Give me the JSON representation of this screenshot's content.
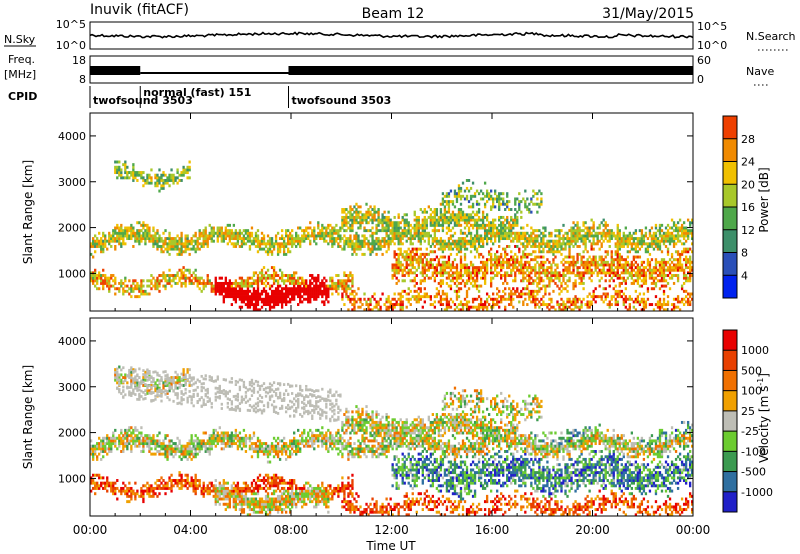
{
  "header": {
    "station": "Inuvik (fitACF)",
    "beam": "Beam 12",
    "date": "31/May/2015"
  },
  "strips": {
    "nsky": {
      "label": "N.Sky",
      "ticks": [
        "10^5",
        "10^0"
      ]
    },
    "nsearch": {
      "label": "N.Search",
      "ticks": [
        "10^5",
        "10^0"
      ]
    },
    "freq": {
      "label_top": "Freq.",
      "label_unit": "[MHz]",
      "ticks": [
        "18",
        "8"
      ]
    },
    "nave": {
      "label": "Nave",
      "ticks": [
        "60",
        "0"
      ]
    },
    "cpid": {
      "label": "CPID",
      "segments": [
        {
          "name": "twofsound 3503",
          "start_hour": 0.0,
          "end_hour": 2.0
        },
        {
          "name": "normal (fast) 151",
          "start_hour": 2.0,
          "end_hour": 7.9
        },
        {
          "name": "twofsound 3503",
          "start_hour": 7.9,
          "end_hour": 24.0
        }
      ]
    }
  },
  "panels": {
    "power": {
      "ylabel": "Slant Range [km]",
      "cbar_label": "Power [dB]",
      "cbar_ticks": [
        "28",
        "24",
        "20",
        "16",
        "12",
        "8",
        "4"
      ]
    },
    "velocity": {
      "ylabel": "Slant Range [km]",
      "cbar_label": "Velocity [m s",
      "cbar_label_sup": "-1",
      "cbar_label_end": "]",
      "cbar_ticks": [
        "1000",
        "500",
        "100",
        "25",
        "-25",
        "-100",
        "-500",
        "-1000"
      ]
    }
  },
  "axes": {
    "y_ticks": [
      "4000",
      "3000",
      "2000",
      "1000"
    ],
    "x_ticks": [
      "00:00",
      "04:00",
      "08:00",
      "12:00",
      "16:00",
      "20:00",
      "00:00"
    ],
    "xlabel": "Time UT"
  },
  "chart_data": {
    "type": "heatmap",
    "x_range_hours": [
      0,
      24
    ],
    "y_range_km": [
      180,
      4500
    ],
    "power_colors": [
      "#0022ee",
      "#2a4fb8",
      "#3d8f6a",
      "#4fa84a",
      "#a8c82a",
      "#f0c000",
      "#f08a00",
      "#ee4000",
      "#e80000"
    ],
    "velocity_colors": [
      "#2020c8",
      "#2f6fa0",
      "#3b9a50",
      "#6ccc30",
      "#bdbdb5",
      "#f0a000",
      "#f07000",
      "#e84000",
      "#e80000"
    ],
    "scatter_bands": [
      {
        "t0": 0.0,
        "t1": 24.0,
        "r_center": 1750,
        "r_width": 300,
        "density": 0.85,
        "power_bias": 0.55,
        "vel_bias": 0.5
      },
      {
        "t0": 0.0,
        "t1": 10.5,
        "r_center": 800,
        "r_width": 250,
        "density": 0.8,
        "power_bias": 0.65,
        "vel_bias": 0.8
      },
      {
        "t0": 1.0,
        "t1": 4.0,
        "r_center": 3150,
        "r_width": 250,
        "density": 0.65,
        "power_bias": 0.45,
        "vel_bias": 0.5
      },
      {
        "t0": 5.0,
        "t1": 9.5,
        "r_center": 550,
        "r_width": 350,
        "density": 0.95,
        "power_bias": 0.95,
        "vel_bias": 0.55
      },
      {
        "t0": 10.0,
        "t1": 17.0,
        "r_center": 2100,
        "r_width": 400,
        "density": 0.8,
        "power_bias": 0.5,
        "vel_bias": 0.5
      },
      {
        "t0": 14.0,
        "t1": 18.0,
        "r_center": 2600,
        "r_width": 350,
        "density": 0.5,
        "power_bias": 0.4,
        "vel_bias": 0.5
      },
      {
        "t0": 12.0,
        "t1": 24.0,
        "r_center": 1100,
        "r_width": 500,
        "density": 0.75,
        "power_bias": 0.7,
        "vel_bias": 0.25
      },
      {
        "t0": 17.0,
        "t1": 24.0,
        "r_center": 1800,
        "r_width": 350,
        "density": 0.6,
        "power_bias": 0.5,
        "vel_bias": 0.3
      },
      {
        "t0": 10.0,
        "t1": 24.0,
        "r_center": 400,
        "r_width": 300,
        "density": 0.55,
        "power_bias": 0.75,
        "vel_bias": 0.8
      }
    ]
  }
}
